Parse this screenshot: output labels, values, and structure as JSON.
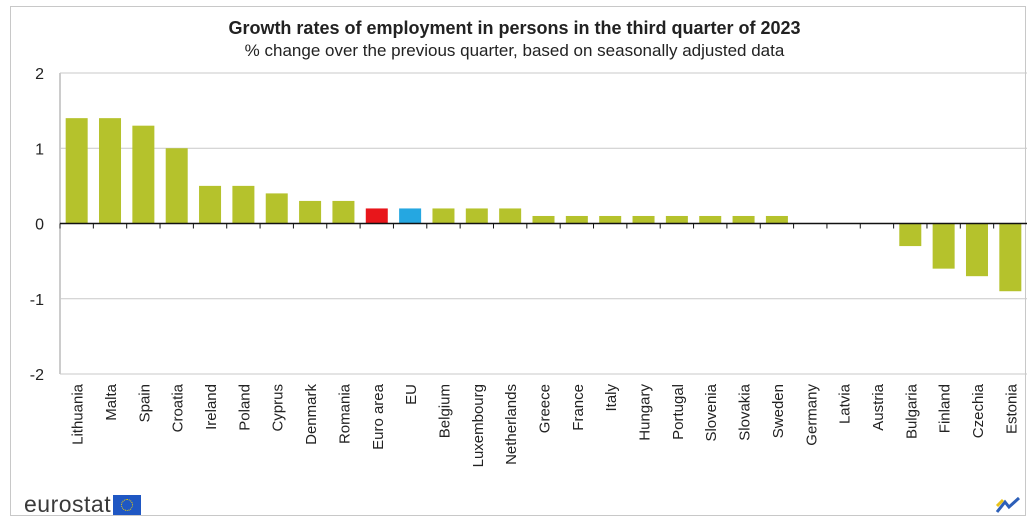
{
  "header": {
    "title": "Growth rates of employment in persons in the third quarter of 2023",
    "subtitle": "% change over the previous quarter, based on seasonally adjusted data"
  },
  "logo": {
    "text": "eurostat"
  },
  "colors": {
    "default_bar": "#b5c22c",
    "euro_area_bar": "#e8161b",
    "eu_bar": "#25a7e1",
    "grid": "#c9c9c9",
    "axis": "#111111"
  },
  "chart_data": {
    "type": "bar",
    "title": "Growth rates of employment in persons in the third quarter of 2023",
    "subtitle": "% change over the previous quarter, based on seasonally adjusted data",
    "xlabel": "",
    "ylabel": "",
    "ylim": [
      -2,
      2
    ],
    "yticks": [
      2,
      1,
      0,
      -1,
      -2
    ],
    "grid": true,
    "legend": "none",
    "categories": [
      "Lithuania",
      "Malta",
      "Spain",
      "Croatia",
      "Ireland",
      "Poland",
      "Cyprus",
      "Denmark",
      "Romania",
      "Euro area",
      "EU",
      "Belgium",
      "Luxembourg",
      "Netherlands",
      "Greece",
      "France",
      "Italy",
      "Hungary",
      "Portugal",
      "Slovenia",
      "Slovakia",
      "Sweden",
      "Germany",
      "Latvia",
      "Austria",
      "Bulgaria",
      "Finland",
      "Czechia",
      "Estonia"
    ],
    "values": [
      1.4,
      1.4,
      1.3,
      1.0,
      0.5,
      0.5,
      0.4,
      0.3,
      0.3,
      0.2,
      0.2,
      0.2,
      0.2,
      0.2,
      0.1,
      0.1,
      0.1,
      0.1,
      0.1,
      0.1,
      0.1,
      0.1,
      0.0,
      0.0,
      0.0,
      -0.3,
      -0.6,
      -0.7,
      -0.9
    ],
    "highlight": {
      "Euro area": "#e8161b",
      "EU": "#25a7e1"
    }
  }
}
